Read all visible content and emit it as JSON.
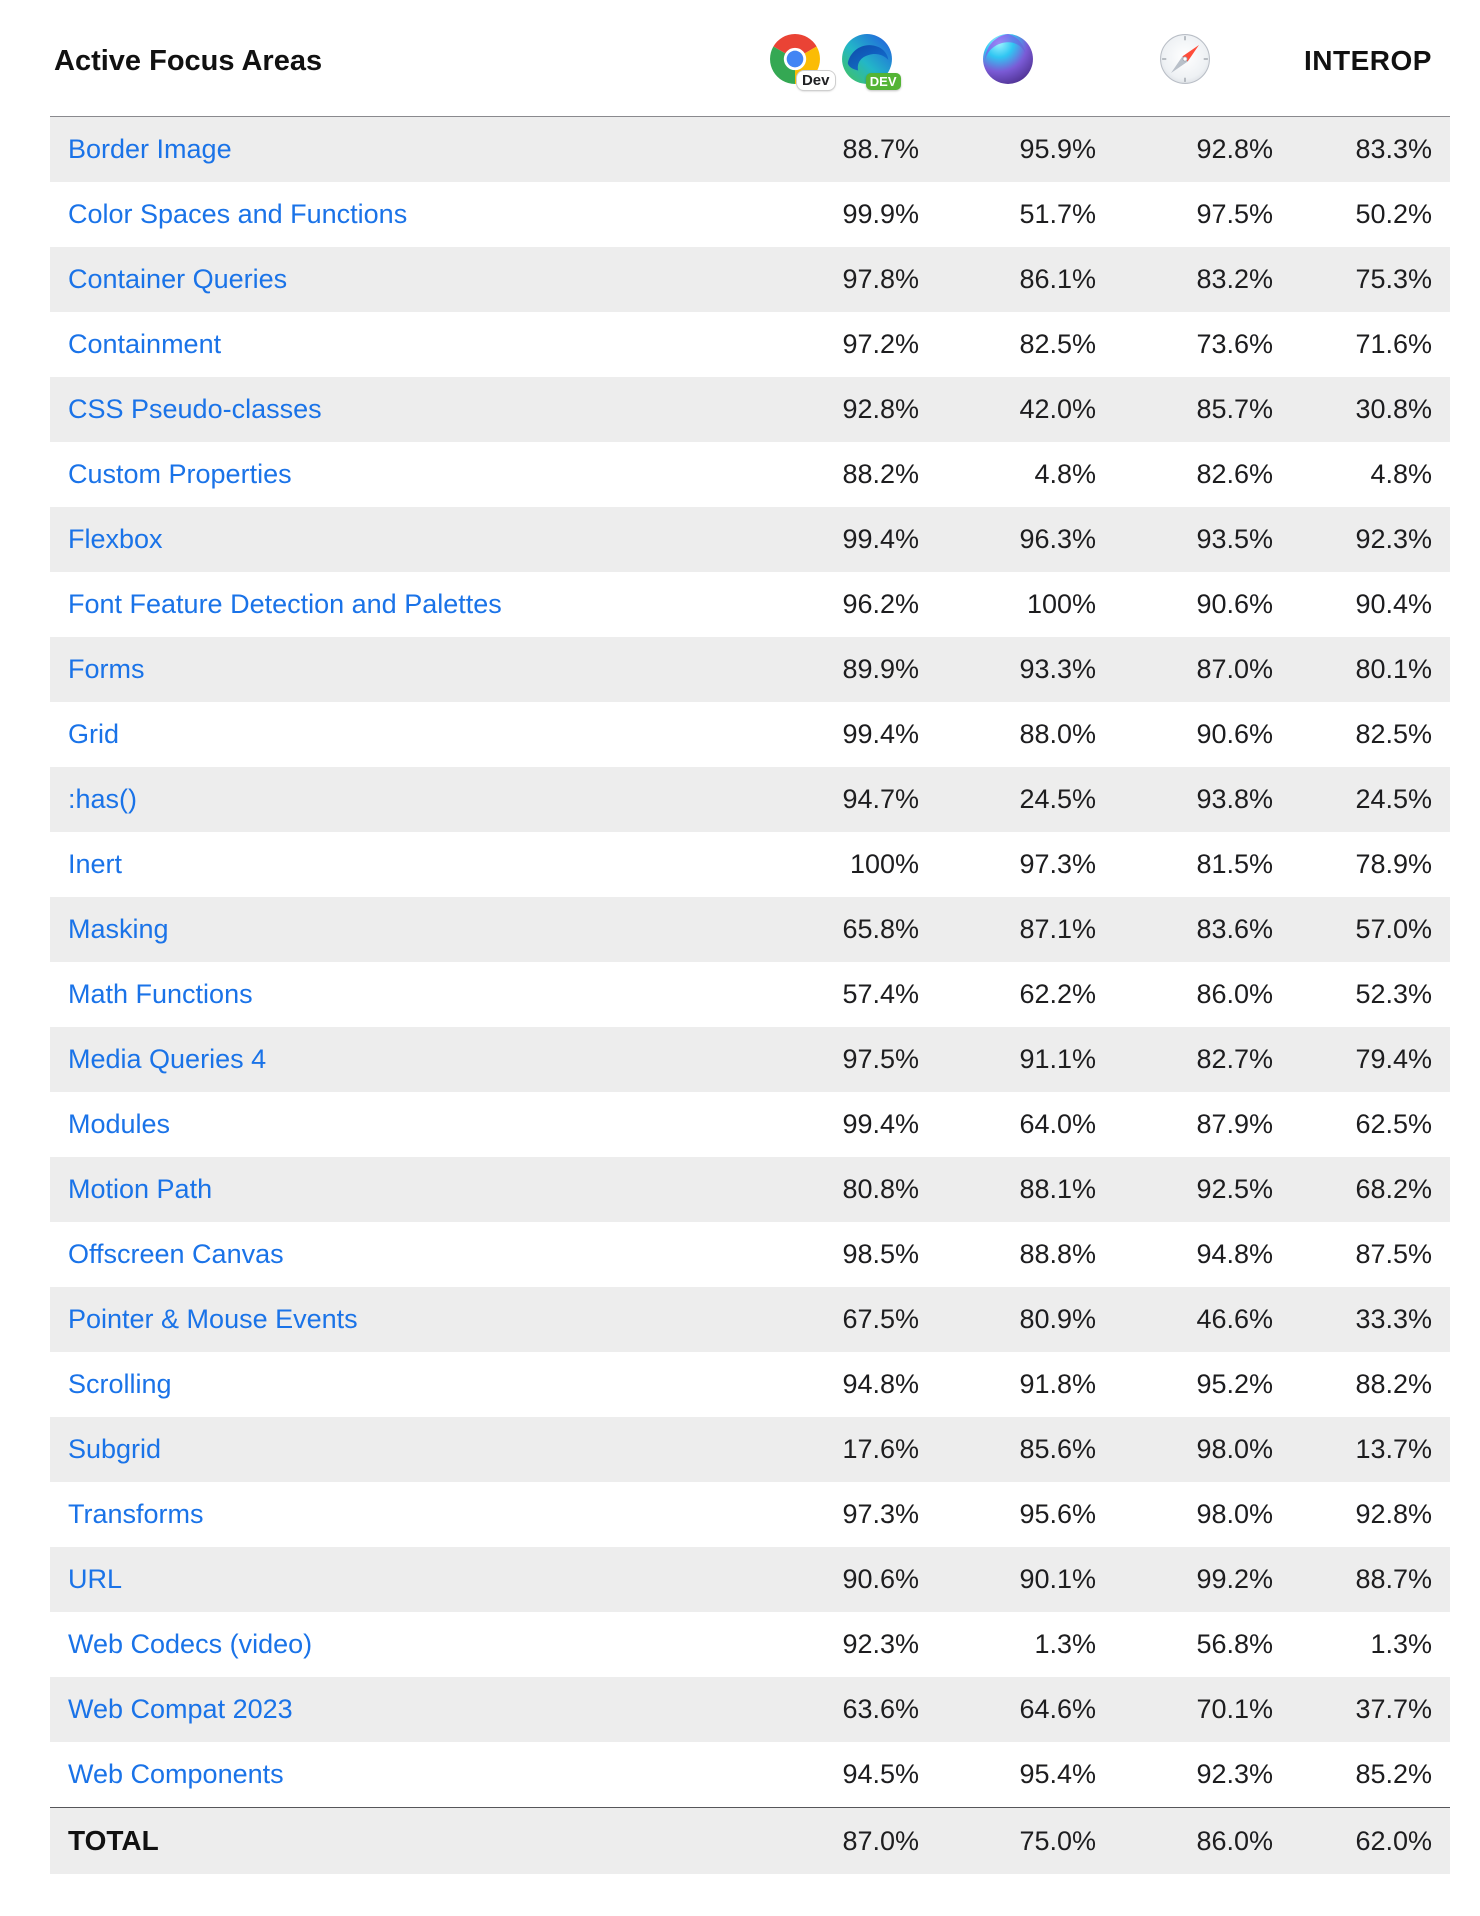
{
  "header": {
    "title": "Active Focus Areas",
    "interop_label": "INTEROP",
    "chrome_badge": "Dev",
    "edge_badge": "DEV",
    "columns": [
      "chrome-dev-and-edge-dev",
      "firefox-nightly",
      "safari-technology-preview",
      "interop"
    ]
  },
  "colors": {
    "link_blue": "#1a73e8",
    "row_stripe": "#ededed",
    "header_border": "#8a8a8e",
    "total_border": "#56565a",
    "text": "#1d1d1f"
  },
  "table": {
    "rows": [
      {
        "name": "Border Image",
        "scores": [
          "88.7%",
          "95.9%",
          "92.8%",
          "83.3%"
        ]
      },
      {
        "name": "Color Spaces and Functions",
        "scores": [
          "99.9%",
          "51.7%",
          "97.5%",
          "50.2%"
        ]
      },
      {
        "name": "Container Queries",
        "scores": [
          "97.8%",
          "86.1%",
          "83.2%",
          "75.3%"
        ]
      },
      {
        "name": "Containment",
        "scores": [
          "97.2%",
          "82.5%",
          "73.6%",
          "71.6%"
        ]
      },
      {
        "name": "CSS Pseudo-classes",
        "scores": [
          "92.8%",
          "42.0%",
          "85.7%",
          "30.8%"
        ]
      },
      {
        "name": "Custom Properties",
        "scores": [
          "88.2%",
          "4.8%",
          "82.6%",
          "4.8%"
        ]
      },
      {
        "name": "Flexbox",
        "scores": [
          "99.4%",
          "96.3%",
          "93.5%",
          "92.3%"
        ]
      },
      {
        "name": "Font Feature Detection and Palettes",
        "scores": [
          "96.2%",
          "100%",
          "90.6%",
          "90.4%"
        ]
      },
      {
        "name": "Forms",
        "scores": [
          "89.9%",
          "93.3%",
          "87.0%",
          "80.1%"
        ]
      },
      {
        "name": "Grid",
        "scores": [
          "99.4%",
          "88.0%",
          "90.6%",
          "82.5%"
        ]
      },
      {
        "name": ":has()",
        "scores": [
          "94.7%",
          "24.5%",
          "93.8%",
          "24.5%"
        ]
      },
      {
        "name": "Inert",
        "scores": [
          "100%",
          "97.3%",
          "81.5%",
          "78.9%"
        ]
      },
      {
        "name": "Masking",
        "scores": [
          "65.8%",
          "87.1%",
          "83.6%",
          "57.0%"
        ]
      },
      {
        "name": "Math Functions",
        "scores": [
          "57.4%",
          "62.2%",
          "86.0%",
          "52.3%"
        ]
      },
      {
        "name": "Media Queries 4",
        "scores": [
          "97.5%",
          "91.1%",
          "82.7%",
          "79.4%"
        ]
      },
      {
        "name": "Modules",
        "scores": [
          "99.4%",
          "64.0%",
          "87.9%",
          "62.5%"
        ]
      },
      {
        "name": "Motion Path",
        "scores": [
          "80.8%",
          "88.1%",
          "92.5%",
          "68.2%"
        ]
      },
      {
        "name": "Offscreen Canvas",
        "scores": [
          "98.5%",
          "88.8%",
          "94.8%",
          "87.5%"
        ]
      },
      {
        "name": "Pointer & Mouse Events",
        "scores": [
          "67.5%",
          "80.9%",
          "46.6%",
          "33.3%"
        ]
      },
      {
        "name": "Scrolling",
        "scores": [
          "94.8%",
          "91.8%",
          "95.2%",
          "88.2%"
        ]
      },
      {
        "name": "Subgrid",
        "scores": [
          "17.6%",
          "85.6%",
          "98.0%",
          "13.7%"
        ]
      },
      {
        "name": "Transforms",
        "scores": [
          "97.3%",
          "95.6%",
          "98.0%",
          "92.8%"
        ]
      },
      {
        "name": "URL",
        "scores": [
          "90.6%",
          "90.1%",
          "99.2%",
          "88.7%"
        ]
      },
      {
        "name": "Web Codecs (video)",
        "scores": [
          "92.3%",
          "1.3%",
          "56.8%",
          "1.3%"
        ]
      },
      {
        "name": "Web Compat 2023",
        "scores": [
          "63.6%",
          "64.6%",
          "70.1%",
          "37.7%"
        ]
      },
      {
        "name": "Web Components",
        "scores": [
          "94.5%",
          "95.4%",
          "92.3%",
          "85.2%"
        ]
      }
    ],
    "total": {
      "name": "TOTAL",
      "scores": [
        "87.0%",
        "75.0%",
        "86.0%",
        "62.0%"
      ]
    }
  }
}
